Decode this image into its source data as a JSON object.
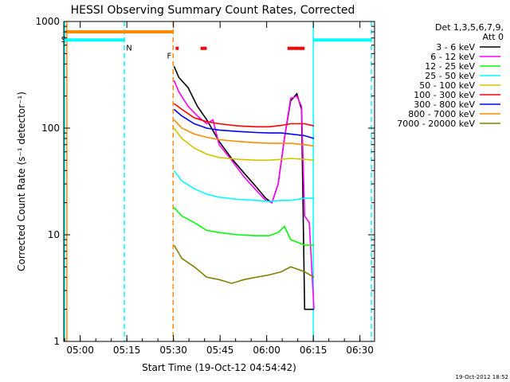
{
  "chart_data": {
    "type": "line",
    "title": "HESSI Observing Summary Count Rates, Corrected",
    "xlabel": "Start Time (19-Oct-12 04:54:42)",
    "ylabel": "Corrected Count Rate (s⁻¹ detector⁻¹)",
    "yscale": "log",
    "ylim": [
      1,
      1000
    ],
    "xlim_minutes": [
      0,
      100
    ],
    "x_ticks": [
      {
        "label": "05:00",
        "minute": 5.3
      },
      {
        "label": "05:15",
        "minute": 20.3
      },
      {
        "label": "05:30",
        "minute": 35.3
      },
      {
        "label": "05:45",
        "minute": 50.3
      },
      {
        "label": "06:00",
        "minute": 65.3
      },
      {
        "label": "06:15",
        "minute": 80.3
      },
      {
        "label": "06:30",
        "minute": 95.3
      }
    ],
    "y_ticks": [
      {
        "label": "1",
        "value": 1
      },
      {
        "label": "10",
        "value": 10
      },
      {
        "label": "100",
        "value": 100
      },
      {
        "label": "1000",
        "value": 1000
      }
    ],
    "legend": {
      "title_line1": "Det 1,3,5,6,7,9,",
      "title_line2": "Att 0",
      "placement": "right"
    },
    "series": [
      {
        "name": "3 - 6 keV",
        "color": "#000000",
        "points": [
          [
            35.5,
            380
          ],
          [
            37,
            300
          ],
          [
            40,
            240
          ],
          [
            43,
            160
          ],
          [
            46,
            120
          ],
          [
            50,
            75
          ],
          [
            54,
            52
          ],
          [
            58,
            38
          ],
          [
            62,
            28
          ],
          [
            65,
            22
          ],
          [
            67,
            20
          ],
          [
            69,
            30
          ],
          [
            71,
            80
          ],
          [
            73,
            180
          ],
          [
            75,
            210
          ],
          [
            76.5,
            150
          ],
          [
            77.5,
            2
          ],
          [
            80.5,
            2
          ]
        ]
      },
      {
        "name": "6 - 12 keV",
        "color": "#ff00ff",
        "points": [
          [
            35.5,
            280
          ],
          [
            37,
            220
          ],
          [
            40,
            160
          ],
          [
            43,
            130
          ],
          [
            46,
            110
          ],
          [
            48,
            120
          ],
          [
            50,
            70
          ],
          [
            54,
            50
          ],
          [
            58,
            35
          ],
          [
            62,
            26
          ],
          [
            65,
            21
          ],
          [
            67,
            20
          ],
          [
            69,
            30
          ],
          [
            71,
            80
          ],
          [
            73,
            190
          ],
          [
            75,
            200
          ],
          [
            76.5,
            160
          ],
          [
            77.5,
            15
          ],
          [
            79,
            13
          ],
          [
            80.5,
            2
          ]
        ]
      },
      {
        "name": "12 - 25 keV",
        "color": "#00ff00",
        "points": [
          [
            35.5,
            18
          ],
          [
            38,
            15
          ],
          [
            42,
            13
          ],
          [
            46,
            11
          ],
          [
            50,
            10.5
          ],
          [
            56,
            10
          ],
          [
            62,
            9.8
          ],
          [
            66,
            9.8
          ],
          [
            69,
            10.5
          ],
          [
            71,
            12
          ],
          [
            73,
            9
          ],
          [
            77.5,
            8
          ],
          [
            80.5,
            8
          ]
        ]
      },
      {
        "name": "25 - 50 keV",
        "color": "#00ffff",
        "points": [
          [
            35.5,
            40
          ],
          [
            38,
            32
          ],
          [
            42,
            27
          ],
          [
            46,
            24
          ],
          [
            50,
            22.5
          ],
          [
            56,
            21.5
          ],
          [
            62,
            21
          ],
          [
            66,
            20.5
          ],
          [
            70,
            21
          ],
          [
            73,
            21
          ],
          [
            77.5,
            22
          ],
          [
            80.5,
            22
          ]
        ]
      },
      {
        "name": "50 - 100 keV",
        "color": "#d4c400",
        "points": [
          [
            35.5,
            100
          ],
          [
            38,
            80
          ],
          [
            42,
            65
          ],
          [
            46,
            57
          ],
          [
            50,
            53
          ],
          [
            56,
            51
          ],
          [
            62,
            50
          ],
          [
            66,
            50
          ],
          [
            70,
            51
          ],
          [
            73,
            52
          ],
          [
            77.5,
            51
          ],
          [
            80.5,
            50
          ]
        ]
      },
      {
        "name": "100 - 300 keV",
        "color": "#ff0000",
        "points": [
          [
            35.5,
            170
          ],
          [
            38,
            150
          ],
          [
            42,
            125
          ],
          [
            46,
            115
          ],
          [
            50,
            110
          ],
          [
            56,
            105
          ],
          [
            62,
            103
          ],
          [
            66,
            103
          ],
          [
            70,
            106
          ],
          [
            73,
            110
          ],
          [
            77.5,
            110
          ],
          [
            80.5,
            105
          ]
        ]
      },
      {
        "name": "300 - 800 keV",
        "color": "#0000ff",
        "points": [
          [
            35.5,
            150
          ],
          [
            38,
            130
          ],
          [
            42,
            110
          ],
          [
            46,
            100
          ],
          [
            50,
            96
          ],
          [
            56,
            93
          ],
          [
            62,
            91
          ],
          [
            66,
            90
          ],
          [
            70,
            90
          ],
          [
            73,
            88
          ],
          [
            77.5,
            85
          ],
          [
            80.5,
            80
          ]
        ]
      },
      {
        "name": "800 - 7000 keV",
        "color": "#ff8c00",
        "points": [
          [
            35.5,
            120
          ],
          [
            38,
            100
          ],
          [
            42,
            88
          ],
          [
            46,
            82
          ],
          [
            50,
            78
          ],
          [
            56,
            75
          ],
          [
            62,
            73
          ],
          [
            66,
            72
          ],
          [
            70,
            72
          ],
          [
            73,
            72
          ],
          [
            77.5,
            70
          ],
          [
            80.5,
            68
          ]
        ]
      },
      {
        "name": "7000 - 20000 keV",
        "color": "#808000",
        "points": [
          [
            35.5,
            8
          ],
          [
            38,
            6
          ],
          [
            42,
            5
          ],
          [
            46,
            4
          ],
          [
            50,
            3.8
          ],
          [
            54,
            3.5
          ],
          [
            58,
            3.8
          ],
          [
            62,
            4
          ],
          [
            66,
            4.2
          ],
          [
            70,
            4.5
          ],
          [
            73,
            5
          ],
          [
            77.5,
            4.5
          ],
          [
            80.5,
            4
          ]
        ]
      }
    ],
    "flags": [
      {
        "label": "S",
        "color": "#ff8c00",
        "y_value": 800,
        "segments": [
          [
            0.5,
            35
          ]
        ]
      },
      {
        "label": "N",
        "color": "#00ffff",
        "y_value": 670,
        "segments": [
          [
            0,
            19.5
          ],
          [
            80.3,
            99
          ]
        ]
      },
      {
        "label": "F",
        "color": "#ff0000",
        "y_value": 560,
        "segments": [
          [
            36,
            37
          ],
          [
            44,
            46
          ],
          [
            72,
            77.5
          ]
        ]
      }
    ],
    "vertical_markers": [
      {
        "minute": 0.3,
        "color": "#00ffff",
        "style": "solid"
      },
      {
        "minute": 1.0,
        "color": "#ff8c00",
        "style": "solid"
      },
      {
        "minute": 19.5,
        "color": "#00ffff",
        "style": "dashed"
      },
      {
        "minute": 35.2,
        "color": "#ff8c00",
        "style": "dashed"
      },
      {
        "minute": 80.3,
        "color": "#00ffff",
        "style": "solid"
      },
      {
        "minute": 99.0,
        "color": "#00ffff",
        "style": "dashed"
      }
    ]
  },
  "footer": {
    "timestamp": "19-Oct-2012 18:52"
  }
}
